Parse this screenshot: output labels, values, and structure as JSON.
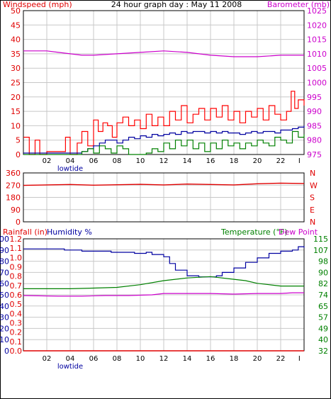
{
  "title": "24 hour graph day : May 11 2008",
  "colors": {
    "wind": "#e00000",
    "gust": "#ff0000",
    "avg": "#0000a0",
    "green": "#008000",
    "baro": "#cc00cc",
    "blue": "#0000a0",
    "grid": "#c8c8c8",
    "frame": "#000000",
    "lowtide": "#0000a0"
  },
  "x_ticks": [
    "02",
    "04",
    "06",
    "08",
    "10",
    "12",
    "14",
    "16",
    "18",
    "20",
    "22",
    "I"
  ],
  "lowtide_label": "lowtide",
  "chart_data": [
    {
      "type": "line",
      "title": "24 hour graph day : May 11 2008",
      "left_axis_label": "Windspeed (mph)",
      "right_axis_label": "Barometer (mb)",
      "left_ticks": [
        "0",
        "5",
        "10",
        "15",
        "20",
        "25",
        "30",
        "35",
        "40",
        "45",
        "50"
      ],
      "right_ticks": [
        "975",
        "980",
        "985",
        "990",
        "995",
        "1000",
        "1005",
        "1010",
        "1015",
        "1020",
        "1025"
      ],
      "ylim_left": [
        0,
        50
      ],
      "ylim_right": [
        975,
        1025
      ],
      "xlim": [
        0,
        24
      ],
      "grid": true,
      "series": [
        {
          "key": "gust",
          "values": [
            [
              0,
              6
            ],
            [
              0.5,
              0
            ],
            [
              1,
              5
            ],
            [
              1.4,
              0
            ],
            [
              2,
              1
            ],
            [
              3,
              1
            ],
            [
              3.6,
              6
            ],
            [
              4,
              0
            ],
            [
              4.6,
              4
            ],
            [
              5,
              8
            ],
            [
              5.5,
              3
            ],
            [
              6,
              12
            ],
            [
              6.4,
              8
            ],
            [
              6.8,
              11
            ],
            [
              7.2,
              10
            ],
            [
              7.6,
              6
            ],
            [
              8,
              11
            ],
            [
              8.5,
              13
            ],
            [
              9,
              10
            ],
            [
              9.5,
              12
            ],
            [
              10,
              9
            ],
            [
              10.5,
              14
            ],
            [
              11,
              10
            ],
            [
              11.5,
              13
            ],
            [
              12,
              10
            ],
            [
              12.5,
              15
            ],
            [
              13,
              12
            ],
            [
              13.5,
              17
            ],
            [
              14,
              11
            ],
            [
              14.5,
              14
            ],
            [
              15,
              16
            ],
            [
              15.5,
              12
            ],
            [
              16,
              16
            ],
            [
              16.5,
              13
            ],
            [
              17,
              17
            ],
            [
              17.5,
              12
            ],
            [
              18,
              15
            ],
            [
              18.5,
              11
            ],
            [
              19,
              15
            ],
            [
              19.5,
              13
            ],
            [
              20,
              16
            ],
            [
              20.5,
              12
            ],
            [
              21,
              17
            ],
            [
              21.5,
              14
            ],
            [
              22,
              12
            ],
            [
              22.5,
              15
            ],
            [
              22.9,
              22
            ],
            [
              23.2,
              16
            ],
            [
              23.5,
              19
            ],
            [
              24,
              17
            ]
          ]
        },
        {
          "key": "avg",
          "values": [
            [
              0,
              0.5
            ],
            [
              1,
              0.5
            ],
            [
              2,
              0.5
            ],
            [
              3,
              0.5
            ],
            [
              4,
              0.5
            ],
            [
              5,
              1
            ],
            [
              5.5,
              2
            ],
            [
              6,
              3
            ],
            [
              6.5,
              4
            ],
            [
              7,
              5
            ],
            [
              7.5,
              5
            ],
            [
              8,
              4
            ],
            [
              8.5,
              5
            ],
            [
              9,
              6
            ],
            [
              9.5,
              5.5
            ],
            [
              10,
              6.5
            ],
            [
              10.5,
              6
            ],
            [
              11,
              7
            ],
            [
              11.5,
              6.5
            ],
            [
              12,
              7
            ],
            [
              12.5,
              7.5
            ],
            [
              13,
              7
            ],
            [
              13.5,
              8
            ],
            [
              14,
              7.5
            ],
            [
              14.5,
              8
            ],
            [
              15,
              8
            ],
            [
              15.5,
              7.5
            ],
            [
              16,
              8
            ],
            [
              16.5,
              7.5
            ],
            [
              17,
              8
            ],
            [
              17.5,
              7.5
            ],
            [
              18,
              7.5
            ],
            [
              18.5,
              7
            ],
            [
              19,
              7.5
            ],
            [
              19.5,
              8
            ],
            [
              20,
              7.5
            ],
            [
              20.5,
              8
            ],
            [
              21,
              8
            ],
            [
              21.5,
              7.5
            ],
            [
              22,
              8.5
            ],
            [
              22.5,
              8.5
            ],
            [
              23,
              9
            ],
            [
              23.5,
              9.5
            ],
            [
              24,
              10
            ]
          ]
        },
        {
          "key": "dir_green",
          "values": [
            [
              0,
              0
            ],
            [
              4.5,
              0
            ],
            [
              5,
              1
            ],
            [
              5.5,
              2
            ],
            [
              6,
              0.5
            ],
            [
              6.5,
              3
            ],
            [
              7,
              2
            ],
            [
              7.5,
              0.5
            ],
            [
              8,
              3
            ],
            [
              8.5,
              2
            ],
            [
              9,
              0
            ],
            [
              10,
              0
            ],
            [
              10.5,
              0.5
            ],
            [
              11,
              2
            ],
            [
              11.5,
              1
            ],
            [
              12,
              4
            ],
            [
              12.5,
              2
            ],
            [
              13,
              5
            ],
            [
              13.5,
              3
            ],
            [
              14,
              5
            ],
            [
              14.5,
              2
            ],
            [
              15,
              4
            ],
            [
              15.5,
              1
            ],
            [
              16,
              4
            ],
            [
              16.5,
              2
            ],
            [
              17,
              5
            ],
            [
              17.5,
              3
            ],
            [
              18,
              4
            ],
            [
              18.5,
              2
            ],
            [
              19,
              4
            ],
            [
              19.5,
              3
            ],
            [
              20,
              5
            ],
            [
              20.5,
              4
            ],
            [
              21,
              3
            ],
            [
              21.5,
              6
            ],
            [
              22,
              5
            ],
            [
              22.5,
              4
            ],
            [
              23,
              8
            ],
            [
              23.5,
              6
            ],
            [
              24,
              7
            ]
          ]
        },
        {
          "key": "baro",
          "axis": "right",
          "values": [
            [
              0,
              1011
            ],
            [
              2,
              1011
            ],
            [
              3,
              1010.5
            ],
            [
              4,
              1010
            ],
            [
              5,
              1009.5
            ],
            [
              6,
              1009.5
            ],
            [
              8,
              1010
            ],
            [
              10,
              1010.5
            ],
            [
              12,
              1011
            ],
            [
              14,
              1010.5
            ],
            [
              15,
              1010
            ],
            [
              16,
              1009.5
            ],
            [
              18,
              1009
            ],
            [
              20,
              1009
            ],
            [
              22,
              1009.5
            ],
            [
              24,
              1009.5
            ]
          ]
        }
      ]
    },
    {
      "type": "line",
      "left_ticks": [
        "0",
        "90",
        "180",
        "270",
        "360"
      ],
      "right_ticks": [
        "N",
        "W",
        "S",
        "E",
        "N"
      ],
      "ylim": [
        0,
        360
      ],
      "xlim": [
        0,
        24
      ],
      "grid": true,
      "series": [
        {
          "key": "wind_direction",
          "values": [
            [
              0,
              268
            ],
            [
              2,
              272
            ],
            [
              4,
              275
            ],
            [
              6,
              270
            ],
            [
              8,
              273
            ],
            [
              10,
              276
            ],
            [
              12,
              272
            ],
            [
              14,
              278
            ],
            [
              16,
              275
            ],
            [
              18,
              272
            ],
            [
              20,
              280
            ],
            [
              22,
              285
            ],
            [
              24,
              282
            ]
          ]
        }
      ]
    },
    {
      "type": "line",
      "rainfall_label": "Rainfall (in)",
      "humidity_label": "Humidity %",
      "temp_label": "Temperature (°F)",
      "dew_label": "Dew Point",
      "humidity_ticks": [
        "0",
        "10",
        "20",
        "30",
        "40",
        "50",
        "60",
        "70",
        "80",
        "90",
        "100"
      ],
      "rainfall_ticks": [
        "0.0",
        "0.1",
        "0.2",
        "0.3",
        "0.4",
        "0.5",
        "0.6",
        "0.7",
        "0.8",
        "0.9",
        "1.0",
        "1.1",
        "1.2"
      ],
      "temp_ticks": [
        "32",
        "40",
        "49",
        "57",
        "65",
        "74",
        "82",
        "90",
        "98",
        "107",
        "115"
      ],
      "ylim_humidity": [
        0,
        100
      ],
      "ylim_rainfall": [
        0,
        1.2
      ],
      "ylim_temp": [
        32,
        115
      ],
      "xlim": [
        0,
        24
      ],
      "grid": true,
      "series": [
        {
          "key": "humidity",
          "values": [
            [
              0,
              91
            ],
            [
              3,
              91
            ],
            [
              3.5,
              90
            ],
            [
              4.5,
              90
            ],
            [
              5,
              89
            ],
            [
              7,
              89
            ],
            [
              7.5,
              88
            ],
            [
              9,
              88
            ],
            [
              9.5,
              87
            ],
            [
              10,
              87
            ],
            [
              10.5,
              88
            ],
            [
              11,
              86
            ],
            [
              12,
              84
            ],
            [
              12.5,
              78
            ],
            [
              13,
              72
            ],
            [
              14,
              67
            ],
            [
              15,
              66
            ],
            [
              16,
              66
            ],
            [
              16.5,
              67
            ],
            [
              17,
              70
            ],
            [
              18,
              74
            ],
            [
              19,
              79
            ],
            [
              20,
              83
            ],
            [
              21,
              87
            ],
            [
              22,
              89
            ],
            [
              23,
              90
            ],
            [
              23.5,
              93
            ],
            [
              24,
              92
            ]
          ]
        },
        {
          "key": "temperature",
          "values": [
            [
              0,
              78
            ],
            [
              2,
              78
            ],
            [
              4,
              78
            ],
            [
              6,
              78.5
            ],
            [
              8,
              79
            ],
            [
              10,
              81
            ],
            [
              12,
              84
            ],
            [
              14,
              86
            ],
            [
              16,
              87
            ],
            [
              18,
              85
            ],
            [
              19,
              84
            ],
            [
              20,
              82
            ],
            [
              21,
              81
            ],
            [
              22,
              80
            ],
            [
              24,
              80
            ]
          ]
        },
        {
          "key": "dew_point",
          "values": [
            [
              0,
              73
            ],
            [
              3,
              72.5
            ],
            [
              5,
              72.5
            ],
            [
              7,
              73
            ],
            [
              9,
              73
            ],
            [
              11,
              73.5
            ],
            [
              12,
              74.5
            ],
            [
              14,
              74.5
            ],
            [
              16,
              74.5
            ],
            [
              18,
              74
            ],
            [
              20,
              74.5
            ],
            [
              22,
              74.5
            ],
            [
              23,
              75
            ],
            [
              24,
              75
            ]
          ]
        },
        {
          "key": "rainfall",
          "values": [
            [
              0,
              0
            ],
            [
              24,
              0
            ]
          ]
        }
      ]
    }
  ]
}
